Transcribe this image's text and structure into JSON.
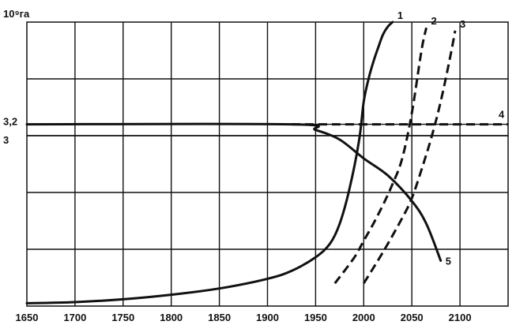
{
  "chart_data": {
    "type": "line",
    "ylabel": "10⁹га",
    "x_ticks": [
      "1650",
      "1700",
      "1750",
      "1800",
      "1850",
      "1900",
      "1950",
      "2000",
      "2050",
      "2100"
    ],
    "y_ticks": [
      "3,2",
      "3"
    ],
    "xlim": [
      1650,
      2150
    ],
    "ylim": [
      0,
      5.0
    ],
    "grid": true,
    "series": [
      {
        "name": "1",
        "style": "solid",
        "x": [
          1650,
          1700,
          1750,
          1800,
          1850,
          1900,
          1925,
          1950,
          1965,
          1975,
          1985,
          1995,
          2000,
          2005,
          2010,
          2015,
          2020,
          2025,
          2030
        ],
        "y": [
          0.05,
          0.07,
          0.12,
          0.2,
          0.31,
          0.48,
          0.62,
          0.86,
          1.1,
          1.45,
          2.05,
          2.9,
          3.6,
          4.0,
          4.3,
          4.55,
          4.78,
          4.92,
          5.0
        ]
      },
      {
        "name": "2",
        "style": "dashed",
        "x": [
          1970,
          1990,
          2000,
          2010,
          2020,
          2030,
          2040,
          2050,
          2060,
          2065
        ],
        "y": [
          0.4,
          0.85,
          1.15,
          1.45,
          1.78,
          2.15,
          2.6,
          3.4,
          4.5,
          4.9
        ]
      },
      {
        "name": "3",
        "style": "dashed",
        "x": [
          2000,
          2020,
          2040,
          2050,
          2060,
          2070,
          2080,
          2090,
          2095
        ],
        "y": [
          0.4,
          0.95,
          1.55,
          1.9,
          2.4,
          2.95,
          3.6,
          4.4,
          4.85
        ]
      },
      {
        "name": "4",
        "style": "dashed",
        "x": [
          1925,
          2160
        ],
        "y": [
          3.2,
          3.2
        ]
      },
      {
        "name": "5",
        "style": "solid",
        "x": [
          1650,
          1925,
          1950,
          1975,
          2000,
          2025,
          2050,
          2065,
          2080
        ],
        "y": [
          3.2,
          3.2,
          3.1,
          2.93,
          2.6,
          2.3,
          1.85,
          1.45,
          0.8
        ]
      }
    ],
    "line_color": "#111111",
    "grid_color": "#111111"
  }
}
